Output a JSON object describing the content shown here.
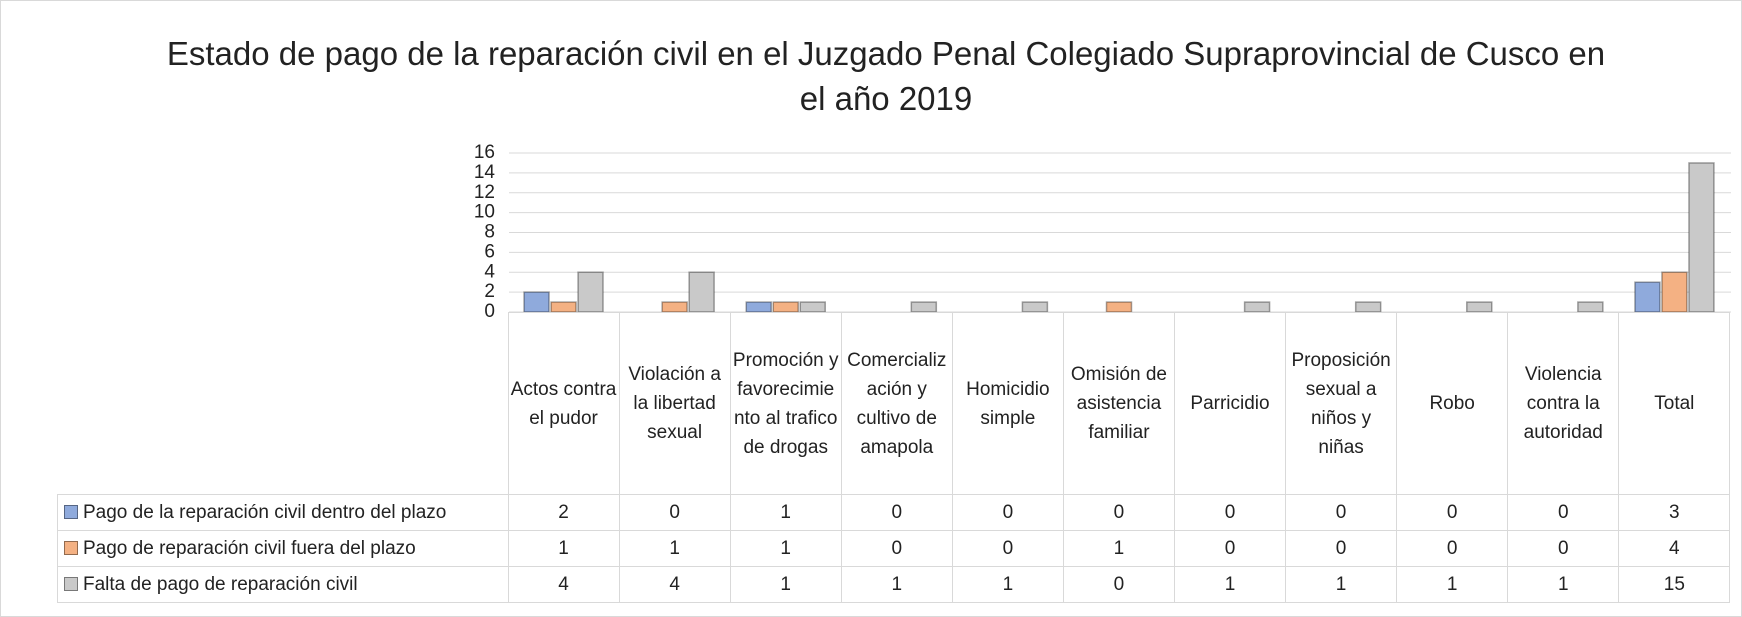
{
  "chart_data": {
    "type": "bar",
    "title": "Estado de pago de la reparación civil en el Juzgado Penal Colegiado Supraprovincial de Cusco en el año 2019",
    "categories": [
      "Actos contra el pudor",
      "Violación a la libertad sexual",
      "Promoción y favorecimiento al trafico de drogas",
      "Comercialización y cultivo de amapola",
      "Homicidio simple",
      "Omisión de asistencia familiar",
      "Parricidio",
      "Proposición sexual a niños y niñas",
      "Robo",
      "Violencia contra la autoridad",
      "Total"
    ],
    "series": [
      {
        "name": "Pago de la reparación civil dentro del plazo",
        "color": "#8faadc",
        "values": [
          2,
          0,
          1,
          0,
          0,
          0,
          0,
          0,
          0,
          0,
          3
        ]
      },
      {
        "name": "Pago de reparación civil fuera del plazo",
        "color": "#f4b183",
        "values": [
          1,
          1,
          1,
          0,
          0,
          1,
          0,
          0,
          0,
          0,
          4
        ]
      },
      {
        "name": "Falta de pago de reparación civil",
        "color": "#c9c9c9",
        "values": [
          4,
          4,
          1,
          1,
          1,
          0,
          1,
          1,
          1,
          1,
          15
        ]
      }
    ],
    "ylim": [
      0,
      16
    ],
    "yticks": [
      0,
      2,
      4,
      6,
      8,
      10,
      12,
      14,
      16
    ],
    "grid": true
  }
}
